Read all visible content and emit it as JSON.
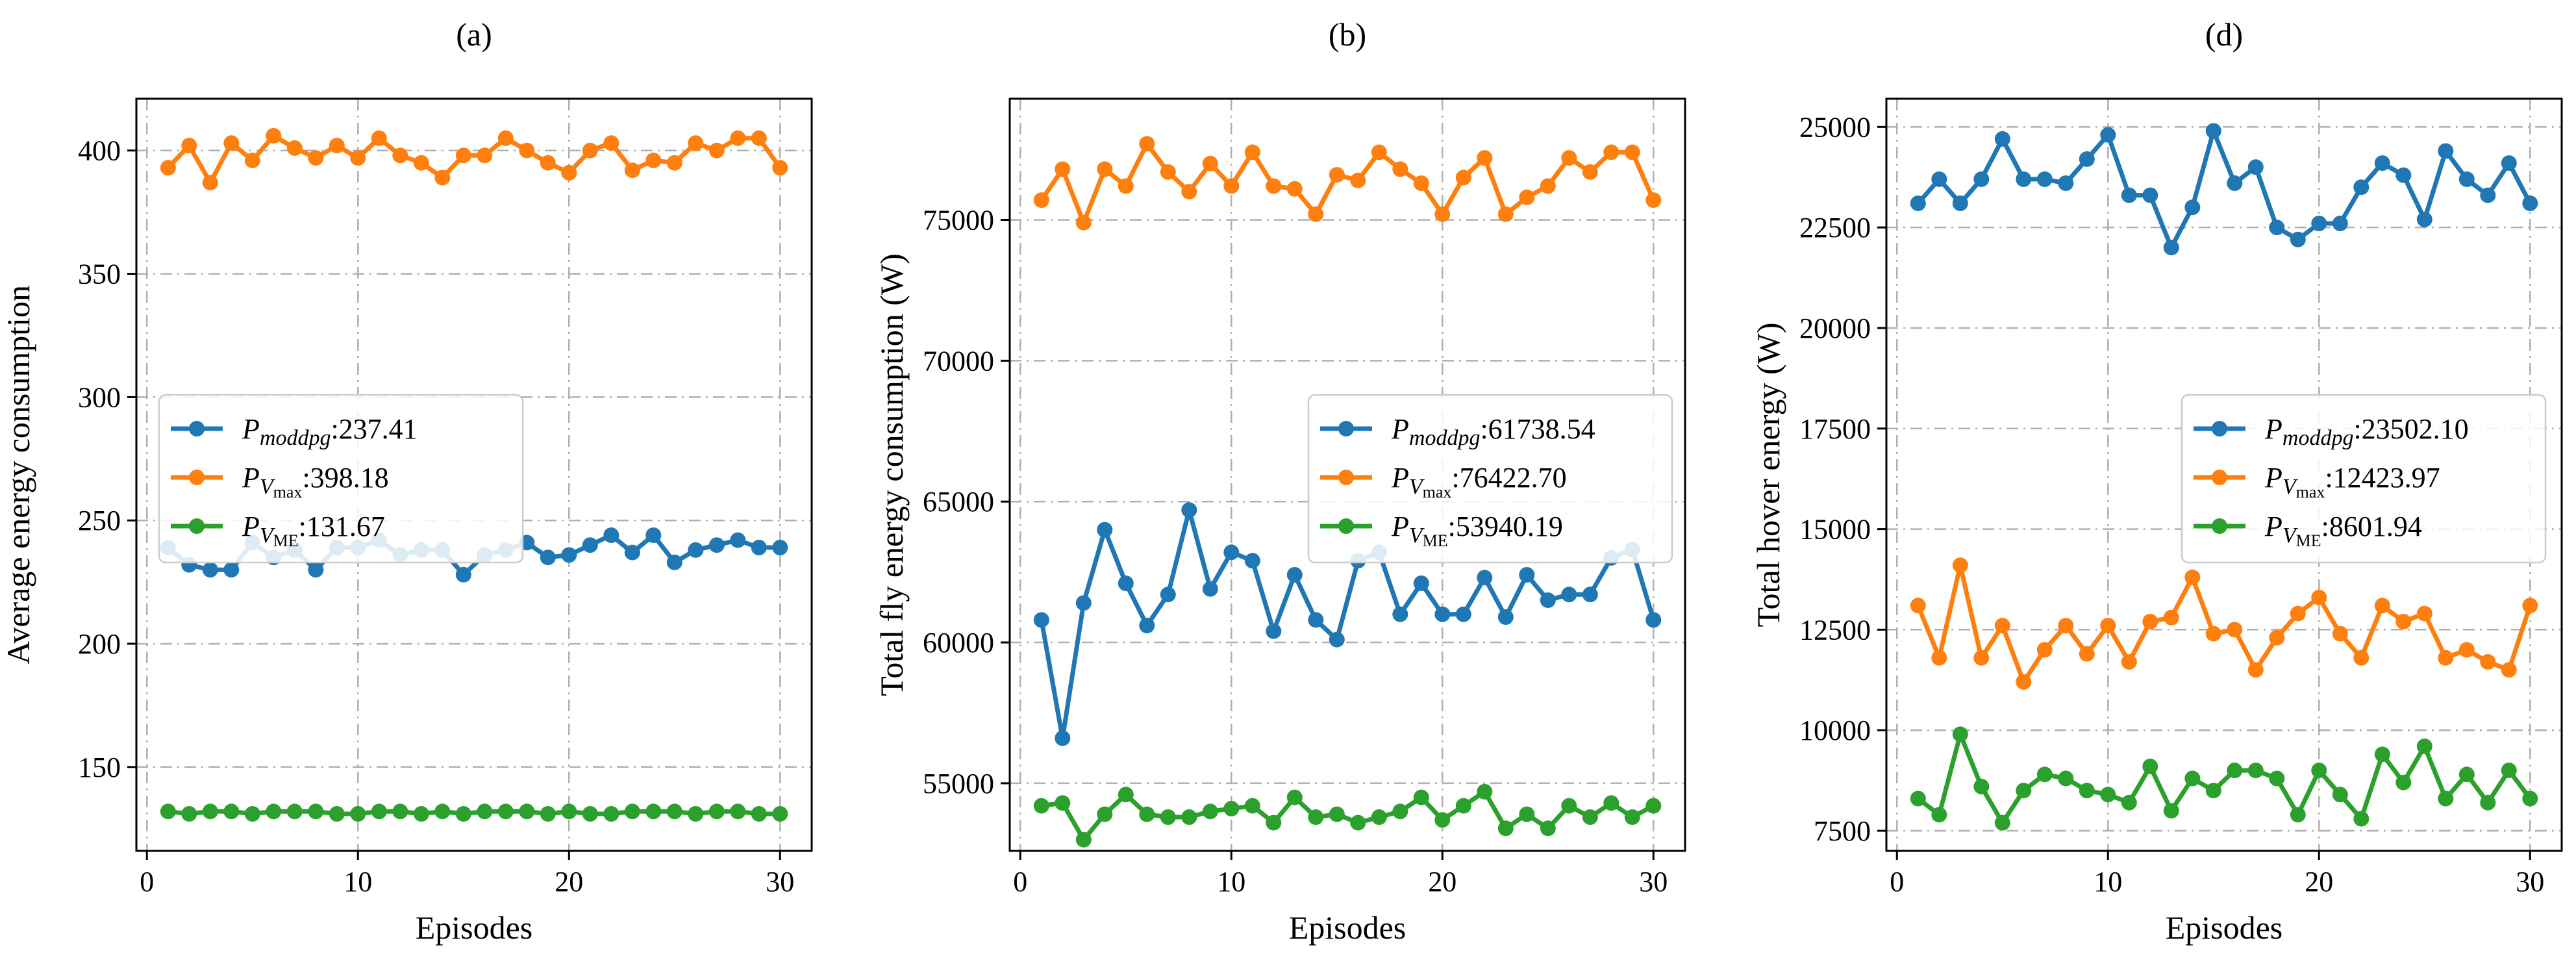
{
  "colors": {
    "moddpg": "#1f77b4",
    "vmax": "#ff7f0e",
    "vme": "#2ca02c"
  },
  "chart_data": [
    {
      "type": "line",
      "title": "(a)",
      "xlabel": "Episodes",
      "ylabel": "Average energy consumption",
      "xlim": [
        -0.5,
        31.5
      ],
      "ylim": [
        116,
        421
      ],
      "xticks": [
        0,
        10,
        20,
        30
      ],
      "yticks": [
        150,
        200,
        250,
        300,
        350,
        400
      ],
      "legend_position": "center-left",
      "x": [
        1,
        2,
        3,
        4,
        5,
        6,
        7,
        8,
        9,
        10,
        11,
        12,
        13,
        14,
        15,
        16,
        17,
        18,
        19,
        20,
        21,
        22,
        23,
        24,
        25,
        26,
        27,
        28,
        29,
        30
      ],
      "series": [
        {
          "key": "moddpg",
          "legend": {
            "sym": "P",
            "sub": "moddpg",
            "value": ":237.41"
          },
          "values": [
            239,
            232,
            230,
            230,
            241,
            235,
            238,
            230,
            239,
            239,
            242,
            236,
            238,
            238,
            228,
            236,
            238,
            241,
            235,
            236,
            240,
            244,
            237,
            244,
            233,
            238,
            240,
            242,
            239,
            239
          ]
        },
        {
          "key": "vmax",
          "legend": {
            "sym": "P",
            "sub": "V",
            "subsub": "max",
            "value": ":398.18"
          },
          "values": [
            393,
            402,
            387,
            403,
            396,
            406,
            401,
            397,
            402,
            397,
            405,
            398,
            395,
            389,
            398,
            398,
            405,
            400,
            395,
            391,
            400,
            403,
            392,
            396,
            395,
            403,
            400,
            405,
            405,
            393
          ]
        },
        {
          "key": "vme",
          "legend": {
            "sym": "P",
            "sub": "V",
            "subsub": "ME",
            "value": ":131.67"
          },
          "values": [
            132,
            131,
            132,
            132,
            131,
            132,
            132,
            132,
            131,
            131,
            132,
            132,
            131,
            132,
            131,
            132,
            132,
            132,
            131,
            132,
            131,
            131,
            132,
            132,
            132,
            131,
            132,
            132,
            131,
            131
          ]
        }
      ]
    },
    {
      "type": "line",
      "title": "(b)",
      "xlabel": "Episodes",
      "ylabel": "Total fly energy consumption (W)",
      "xlim": [
        -0.5,
        31.5
      ],
      "ylim": [
        52600,
        79300
      ],
      "xticks": [
        0,
        10,
        20,
        30
      ],
      "yticks": [
        55000,
        60000,
        65000,
        70000,
        75000
      ],
      "legend_position": "center-right",
      "x": [
        1,
        2,
        3,
        4,
        5,
        6,
        7,
        8,
        9,
        10,
        11,
        12,
        13,
        14,
        15,
        16,
        17,
        18,
        19,
        20,
        21,
        22,
        23,
        24,
        25,
        26,
        27,
        28,
        29,
        30
      ],
      "series": [
        {
          "key": "moddpg",
          "legend": {
            "sym": "P",
            "sub": "moddpg",
            "value": ":61738.54"
          },
          "values": [
            60800,
            56600,
            61400,
            64000,
            62100,
            60600,
            61700,
            64700,
            61900,
            63200,
            62900,
            60400,
            62400,
            60800,
            60100,
            62900,
            63200,
            61000,
            62100,
            61000,
            61000,
            62300,
            60900,
            62400,
            61500,
            61700,
            61700,
            63000,
            63300,
            60800
          ]
        },
        {
          "key": "vmax",
          "legend": {
            "sym": "P",
            "sub": "V",
            "subsub": "max",
            "value": ":76422.70"
          },
          "values": [
            75700,
            76800,
            74900,
            76800,
            76200,
            77700,
            76700,
            76000,
            77000,
            76200,
            77400,
            76200,
            76100,
            75200,
            76600,
            76400,
            77400,
            76800,
            76300,
            75200,
            76500,
            77200,
            75200,
            75800,
            76200,
            77200,
            76700,
            77400,
            77400,
            75700
          ]
        },
        {
          "key": "vme",
          "legend": {
            "sym": "P",
            "sub": "V",
            "subsub": "ME",
            "value": ":53940.19"
          },
          "values": [
            54200,
            54300,
            53000,
            53900,
            54600,
            53900,
            53800,
            53800,
            54000,
            54100,
            54200,
            53600,
            54500,
            53800,
            53900,
            53600,
            53800,
            54000,
            54500,
            53700,
            54200,
            54700,
            53400,
            53900,
            53400,
            54200,
            53800,
            54300,
            53800,
            54200
          ]
        }
      ]
    },
    {
      "type": "line",
      "title": "(d)",
      "xlabel": "Episodes",
      "ylabel": "Total hover energy (W)",
      "xlim": [
        -0.5,
        31.5
      ],
      "ylim": [
        7000,
        25700
      ],
      "xticks": [
        0,
        10,
        20,
        30
      ],
      "yticks": [
        7500,
        10000,
        12500,
        15000,
        17500,
        20000,
        22500,
        25000
      ],
      "legend_position": "center-right",
      "x": [
        1,
        2,
        3,
        4,
        5,
        6,
        7,
        8,
        9,
        10,
        11,
        12,
        13,
        14,
        15,
        16,
        17,
        18,
        19,
        20,
        21,
        22,
        23,
        24,
        25,
        26,
        27,
        28,
        29,
        30
      ],
      "series": [
        {
          "key": "moddpg",
          "legend": {
            "sym": "P",
            "sub": "moddpg",
            "value": ":23502.10"
          },
          "values": [
            23100,
            23700,
            23100,
            23700,
            24700,
            23700,
            23700,
            23600,
            24200,
            24800,
            23300,
            23300,
            22000,
            23000,
            24900,
            23600,
            24000,
            22500,
            22200,
            22600,
            22600,
            23500,
            24100,
            23800,
            22700,
            24400,
            23700,
            23300,
            24100,
            23100
          ]
        },
        {
          "key": "vmax",
          "legend": {
            "sym": "P",
            "sub": "V",
            "subsub": "max",
            "value": ":12423.97"
          },
          "values": [
            13100,
            11800,
            14100,
            11800,
            12600,
            11200,
            12000,
            12600,
            11900,
            12600,
            11700,
            12700,
            12800,
            13800,
            12400,
            12500,
            11500,
            12300,
            12900,
            13300,
            12400,
            11800,
            13100,
            12700,
            12900,
            11800,
            12000,
            11700,
            11500,
            13100
          ]
        },
        {
          "key": "vme",
          "legend": {
            "sym": "P",
            "sub": "V",
            "subsub": "ME",
            "value": ":8601.94"
          },
          "values": [
            8300,
            7900,
            9900,
            8600,
            7700,
            8500,
            8900,
            8800,
            8500,
            8400,
            8200,
            9100,
            8000,
            8800,
            8500,
            9000,
            9000,
            8800,
            7900,
            9000,
            8400,
            7800,
            9400,
            8700,
            9600,
            8300,
            8900,
            8200,
            9000,
            8300
          ]
        }
      ]
    }
  ]
}
